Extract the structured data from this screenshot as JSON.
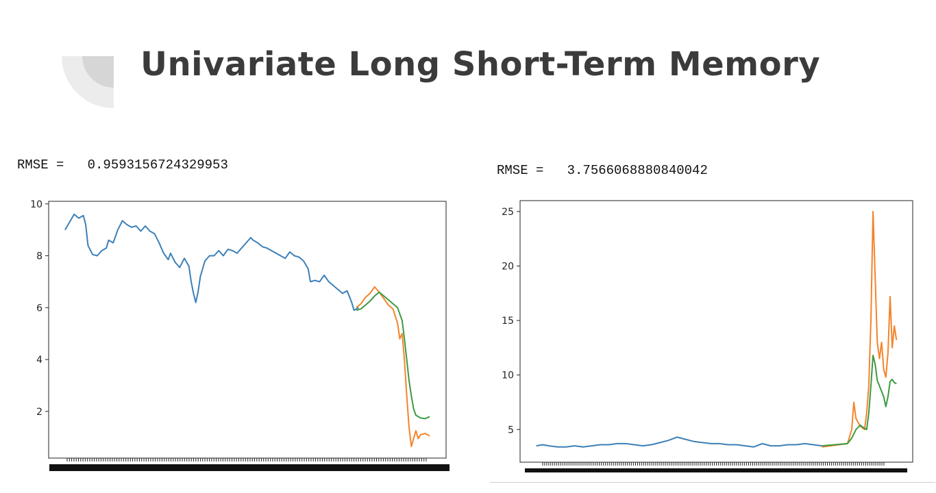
{
  "slide": {
    "title": "Univariate Long Short-Term Memory",
    "accent_colors": {
      "corner_light": "#ececec",
      "corner_dark": "#d6d6d6",
      "title": "#3b3b3b"
    }
  },
  "panels": {
    "left": {
      "rmse_label": "RMSE =   0.9593156724329953"
    },
    "right": {
      "rmse_label": "RMSE =   3.7566068880840042"
    }
  },
  "series_colors": {
    "blue": "#3a7fb8",
    "orange": "#f4832a",
    "green": "#3b9a40"
  },
  "chart_data": [
    {
      "type": "line",
      "ylim": [
        0.2,
        10.1
      ],
      "yticks": [
        2,
        4,
        6,
        8,
        10
      ],
      "x": "index",
      "series": [
        {
          "color": "#3a7fb8",
          "points": [
            [
              0,
              9.0
            ],
            [
              2,
              9.3
            ],
            [
              4,
              9.6
            ],
            [
              6,
              9.45
            ],
            [
              8,
              9.55
            ],
            [
              9,
              9.2
            ],
            [
              10,
              8.4
            ],
            [
              12,
              8.05
            ],
            [
              14,
              8.0
            ],
            [
              16,
              8.2
            ],
            [
              18,
              8.3
            ],
            [
              19,
              8.6
            ],
            [
              21,
              8.5
            ],
            [
              23,
              9.0
            ],
            [
              25,
              9.35
            ],
            [
              27,
              9.2
            ],
            [
              29,
              9.1
            ],
            [
              31,
              9.15
            ],
            [
              33,
              8.95
            ],
            [
              35,
              9.15
            ],
            [
              37,
              8.95
            ],
            [
              39,
              8.85
            ],
            [
              41,
              8.5
            ],
            [
              43,
              8.1
            ],
            [
              45,
              7.85
            ],
            [
              46,
              8.1
            ],
            [
              48,
              7.75
            ],
            [
              50,
              7.55
            ],
            [
              52,
              7.9
            ],
            [
              54,
              7.6
            ],
            [
              55,
              7.0
            ],
            [
              56,
              6.55
            ],
            [
              57,
              6.2
            ],
            [
              58,
              6.6
            ],
            [
              59,
              7.2
            ],
            [
              60,
              7.5
            ],
            [
              61,
              7.8
            ],
            [
              63,
              8.0
            ],
            [
              65,
              8.0
            ],
            [
              67,
              8.2
            ],
            [
              69,
              8.0
            ],
            [
              71,
              8.25
            ],
            [
              73,
              8.2
            ],
            [
              75,
              8.1
            ],
            [
              77,
              8.3
            ],
            [
              79,
              8.5
            ],
            [
              81,
              8.7
            ],
            [
              82,
              8.6
            ],
            [
              84,
              8.5
            ],
            [
              86,
              8.35
            ],
            [
              88,
              8.3
            ],
            [
              90,
              8.2
            ],
            [
              92,
              8.1
            ],
            [
              94,
              8.0
            ],
            [
              96,
              7.9
            ],
            [
              98,
              8.15
            ],
            [
              100,
              8.0
            ],
            [
              102,
              7.95
            ],
            [
              104,
              7.8
            ],
            [
              106,
              7.5
            ],
            [
              107,
              7.0
            ],
            [
              109,
              7.05
            ],
            [
              111,
              7.0
            ],
            [
              113,
              7.25
            ],
            [
              115,
              7.0
            ],
            [
              117,
              6.85
            ],
            [
              119,
              6.7
            ],
            [
              121,
              6.55
            ],
            [
              123,
              6.65
            ],
            [
              125,
              6.2
            ],
            [
              126,
              5.9
            ],
            [
              128,
              6.0
            ]
          ]
        },
        {
          "color": "#f4832a",
          "points": [
            [
              127,
              6.0
            ],
            [
              129,
              6.15
            ],
            [
              131,
              6.4
            ],
            [
              133,
              6.55
            ],
            [
              135,
              6.8
            ],
            [
              137,
              6.6
            ],
            [
              139,
              6.35
            ],
            [
              141,
              6.1
            ],
            [
              143,
              5.95
            ],
            [
              145,
              5.4
            ],
            [
              146,
              4.8
            ],
            [
              147,
              5.0
            ],
            [
              148,
              4.0
            ],
            [
              149,
              2.6
            ],
            [
              150,
              1.4
            ],
            [
              151,
              0.65
            ],
            [
              152,
              0.95
            ],
            [
              153,
              1.25
            ],
            [
              154,
              0.95
            ],
            [
              155,
              1.1
            ],
            [
              157,
              1.15
            ],
            [
              159,
              1.05
            ]
          ]
        },
        {
          "color": "#3b9a40",
          "points": [
            [
              127,
              5.9
            ],
            [
              129,
              5.95
            ],
            [
              131,
              6.1
            ],
            [
              133,
              6.25
            ],
            [
              135,
              6.45
            ],
            [
              137,
              6.6
            ],
            [
              139,
              6.45
            ],
            [
              141,
              6.3
            ],
            [
              143,
              6.15
            ],
            [
              145,
              6.0
            ],
            [
              147,
              5.5
            ],
            [
              148,
              4.8
            ],
            [
              149,
              4.0
            ],
            [
              150,
              3.2
            ],
            [
              151,
              2.6
            ],
            [
              152,
              2.1
            ],
            [
              153,
              1.85
            ],
            [
              155,
              1.75
            ],
            [
              157,
              1.72
            ],
            [
              159,
              1.8
            ]
          ]
        }
      ]
    },
    {
      "type": "line",
      "ylim": [
        2.0,
        26.0
      ],
      "yticks": [
        5,
        10,
        15,
        20,
        25
      ],
      "x": "index",
      "series": [
        {
          "color": "#3a7fb8",
          "points": [
            [
              0,
              3.5
            ],
            [
              3,
              3.6
            ],
            [
              6,
              3.5
            ],
            [
              10,
              3.4
            ],
            [
              14,
              3.4
            ],
            [
              18,
              3.5
            ],
            [
              22,
              3.4
            ],
            [
              26,
              3.5
            ],
            [
              30,
              3.6
            ],
            [
              34,
              3.6
            ],
            [
              38,
              3.7
            ],
            [
              42,
              3.7
            ],
            [
              46,
              3.6
            ],
            [
              50,
              3.5
            ],
            [
              54,
              3.6
            ],
            [
              58,
              3.8
            ],
            [
              62,
              4.0
            ],
            [
              66,
              4.3
            ],
            [
              70,
              4.1
            ],
            [
              74,
              3.9
            ],
            [
              78,
              3.8
            ],
            [
              82,
              3.7
            ],
            [
              86,
              3.7
            ],
            [
              90,
              3.6
            ],
            [
              94,
              3.6
            ],
            [
              98,
              3.5
            ],
            [
              102,
              3.4
            ],
            [
              106,
              3.7
            ],
            [
              110,
              3.5
            ],
            [
              114,
              3.5
            ],
            [
              118,
              3.6
            ],
            [
              122,
              3.6
            ],
            [
              126,
              3.7
            ],
            [
              130,
              3.6
            ],
            [
              134,
              3.5
            ]
          ]
        },
        {
          "color": "#f4832a",
          "points": [
            [
              134,
              3.4
            ],
            [
              138,
              3.5
            ],
            [
              142,
              3.6
            ],
            [
              146,
              3.7
            ],
            [
              148,
              5.0
            ],
            [
              149,
              7.5
            ],
            [
              150,
              6.0
            ],
            [
              152,
              5.3
            ],
            [
              154,
              5.0
            ],
            [
              155,
              6.5
            ],
            [
              156,
              9.0
            ],
            [
              157,
              15.0
            ],
            [
              158,
              25.0
            ],
            [
              159,
              19.0
            ],
            [
              160,
              13.0
            ],
            [
              161,
              11.5
            ],
            [
              162,
              13.0
            ],
            [
              163,
              10.5
            ],
            [
              164,
              9.8
            ],
            [
              165,
              12.0
            ],
            [
              166,
              17.2
            ],
            [
              167,
              12.5
            ],
            [
              168,
              14.5
            ],
            [
              169,
              13.2
            ]
          ]
        },
        {
          "color": "#3b9a40",
          "points": [
            [
              134,
              3.5
            ],
            [
              140,
              3.6
            ],
            [
              146,
              3.7
            ],
            [
              148,
              4.2
            ],
            [
              150,
              5.0
            ],
            [
              152,
              5.4
            ],
            [
              154,
              5.1
            ],
            [
              155,
              5.0
            ],
            [
              156,
              6.5
            ],
            [
              157,
              9.0
            ],
            [
              158,
              11.8
            ],
            [
              159,
              11.0
            ],
            [
              160,
              9.5
            ],
            [
              161,
              9.0
            ],
            [
              162,
              8.5
            ],
            [
              163,
              8.0
            ],
            [
              164,
              7.1
            ],
            [
              165,
              8.0
            ],
            [
              166,
              9.4
            ],
            [
              167,
              9.6
            ],
            [
              168,
              9.3
            ],
            [
              169,
              9.2
            ]
          ]
        }
      ]
    }
  ]
}
